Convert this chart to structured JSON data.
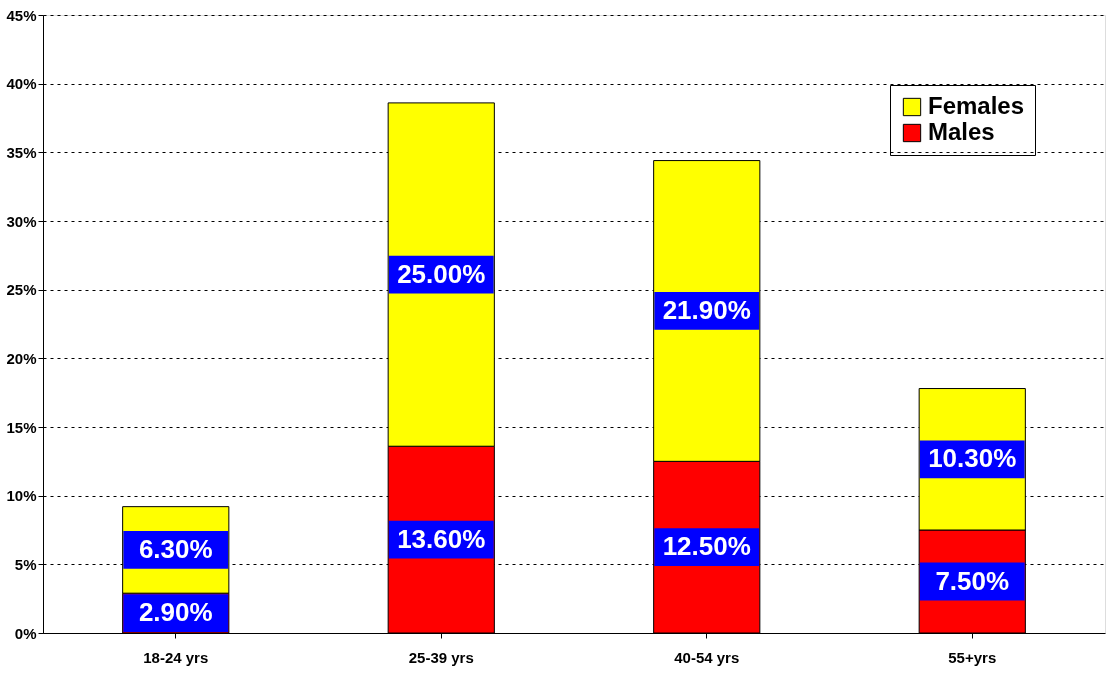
{
  "chart_data": {
    "type": "bar",
    "stacked": true,
    "categories": [
      "18-24 yrs",
      "25-39 yrs",
      "40-54 yrs",
      "55+yrs"
    ],
    "series": [
      {
        "name": "Males",
        "color": "#ff0000",
        "values": [
          2.9,
          13.6,
          12.5,
          7.5
        ],
        "value_labels": [
          "2.90%",
          "13.60%",
          "12.50%",
          "7.50%"
        ]
      },
      {
        "name": "Females",
        "color": "#ffff00",
        "values": [
          6.3,
          25.0,
          21.9,
          10.3
        ],
        "value_labels": [
          "6.30%",
          "25.00%",
          "21.90%",
          "10.30%"
        ]
      }
    ],
    "ylim": [
      0,
      45
    ],
    "yticks": [
      {
        "value": 0,
        "label": "0%"
      },
      {
        "value": 5,
        "label": "5%"
      },
      {
        "value": 10,
        "label": "10%"
      },
      {
        "value": 15,
        "label": "15%"
      },
      {
        "value": 20,
        "label": "20%"
      },
      {
        "value": 25,
        "label": "25%"
      },
      {
        "value": 30,
        "label": "30%"
      },
      {
        "value": 35,
        "label": "35%"
      },
      {
        "value": 40,
        "label": "40%"
      },
      {
        "value": 45,
        "label": "45%"
      }
    ],
    "grid": "y",
    "line_style": "dotted",
    "legend": "top right"
  }
}
